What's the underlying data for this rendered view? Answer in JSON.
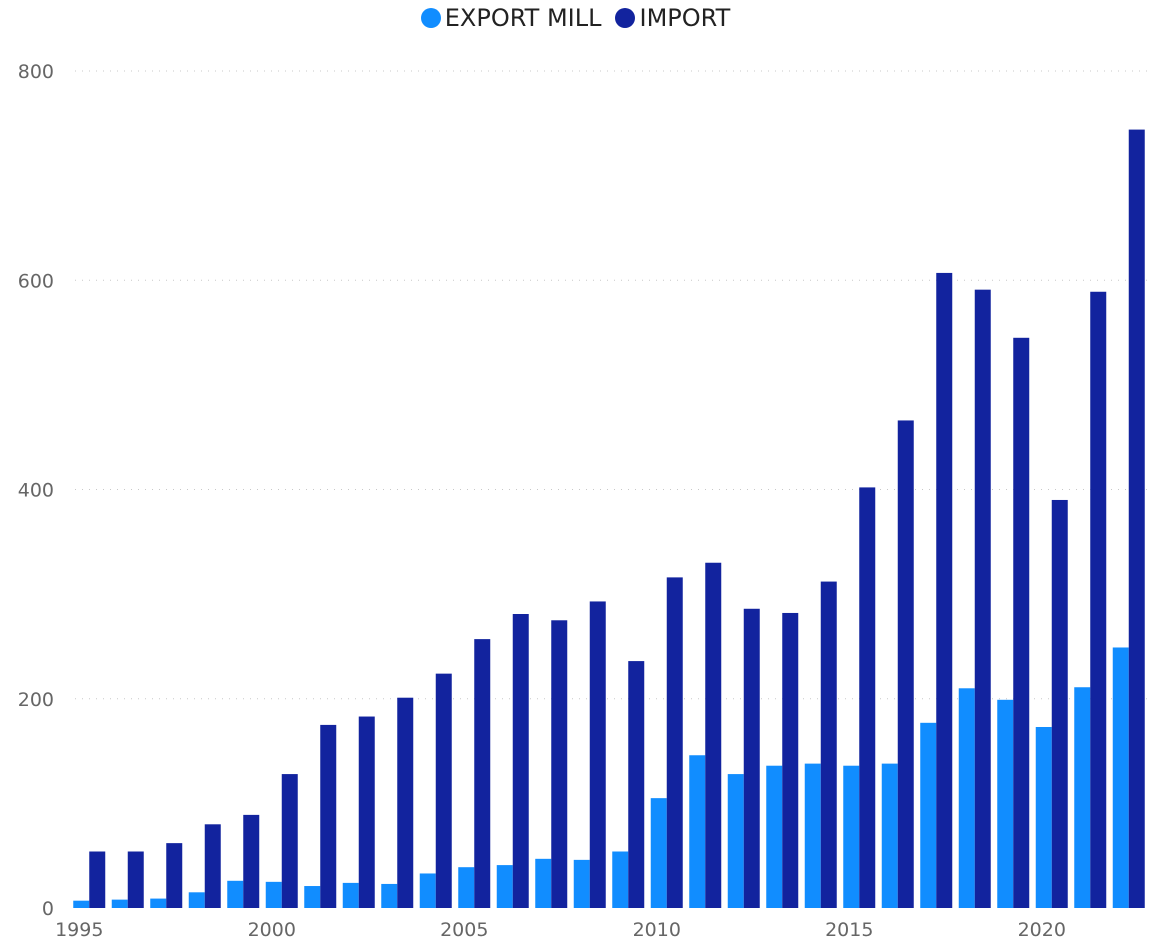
{
  "chart_data": {
    "type": "bar",
    "title": "",
    "xlabel": "",
    "ylabel": "",
    "ylim": [
      0,
      800
    ],
    "yticks": [
      0,
      200,
      400,
      600,
      800
    ],
    "xticks": [
      1995,
      2000,
      2005,
      2010,
      2015,
      2020
    ],
    "grid": true,
    "legend_position": "top-center",
    "categories": [
      1995,
      1996,
      1997,
      1998,
      1999,
      2000,
      2001,
      2002,
      2003,
      2004,
      2005,
      2006,
      2007,
      2008,
      2009,
      2010,
      2011,
      2012,
      2013,
      2014,
      2015,
      2016,
      2017,
      2018,
      2019,
      2020,
      2021,
      2022
    ],
    "series": [
      {
        "name": "EXPORT MILL",
        "color": "#118DFF",
        "values": [
          7,
          8,
          9,
          15,
          26,
          25,
          21,
          24,
          23,
          33,
          39,
          41,
          47,
          46,
          54,
          105,
          146,
          128,
          136,
          138,
          136,
          138,
          177,
          210,
          199,
          173,
          211,
          249
        ]
      },
      {
        "name": "IMPORT",
        "color": "#12239E",
        "values": [
          54,
          54,
          62,
          80,
          89,
          128,
          175,
          183,
          201,
          224,
          257,
          281,
          275,
          293,
          236,
          316,
          330,
          286,
          282,
          312,
          402,
          466,
          607,
          591,
          545,
          390,
          589,
          744
        ]
      }
    ]
  }
}
